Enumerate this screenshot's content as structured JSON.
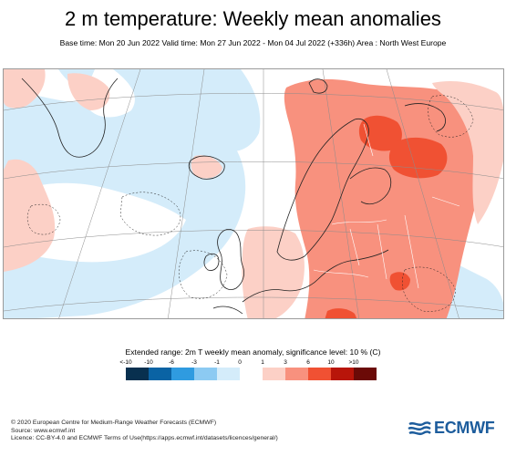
{
  "title": "2 m temperature: Weekly mean anomalies",
  "subtitle": "Base time: Mon 20 Jun 2022 Valid time: Mon 27 Jun 2022 - Mon 04 Jul 2022 (+336h) Area : North West Europe",
  "legend": {
    "title": "Extended range: 2m T weekly mean anomaly, significance level: 10 % (C)",
    "ticks": [
      "<-10",
      "-10",
      "-6",
      "-3",
      "-1",
      "0",
      "1",
      "3",
      "6",
      "10",
      ">10"
    ],
    "colors": [
      "#08304f",
      "#0a63a4",
      "#2f9be0",
      "#8ccaf2",
      "#d4ecfa",
      "#ffffff",
      "#fcd0c6",
      "#f8917e",
      "#f05133",
      "#b8150a",
      "#6b0a07"
    ]
  },
  "colors": {
    "land_outline": "#222222",
    "graticule": "#8c8c8c",
    "border_line": "#ffffff"
  },
  "footer": {
    "line1": "© 2020 European Centre for Medium-Range Weather Forecasts (ECMWF)",
    "line2": "Source: www.ecmwf.int",
    "line3": "Licence: CC-BY-4.0 and ECMWF Terms of Use(https://apps.ecmwf.int/datasets/licences/general/)"
  },
  "logo": {
    "text": "ECMWF"
  }
}
